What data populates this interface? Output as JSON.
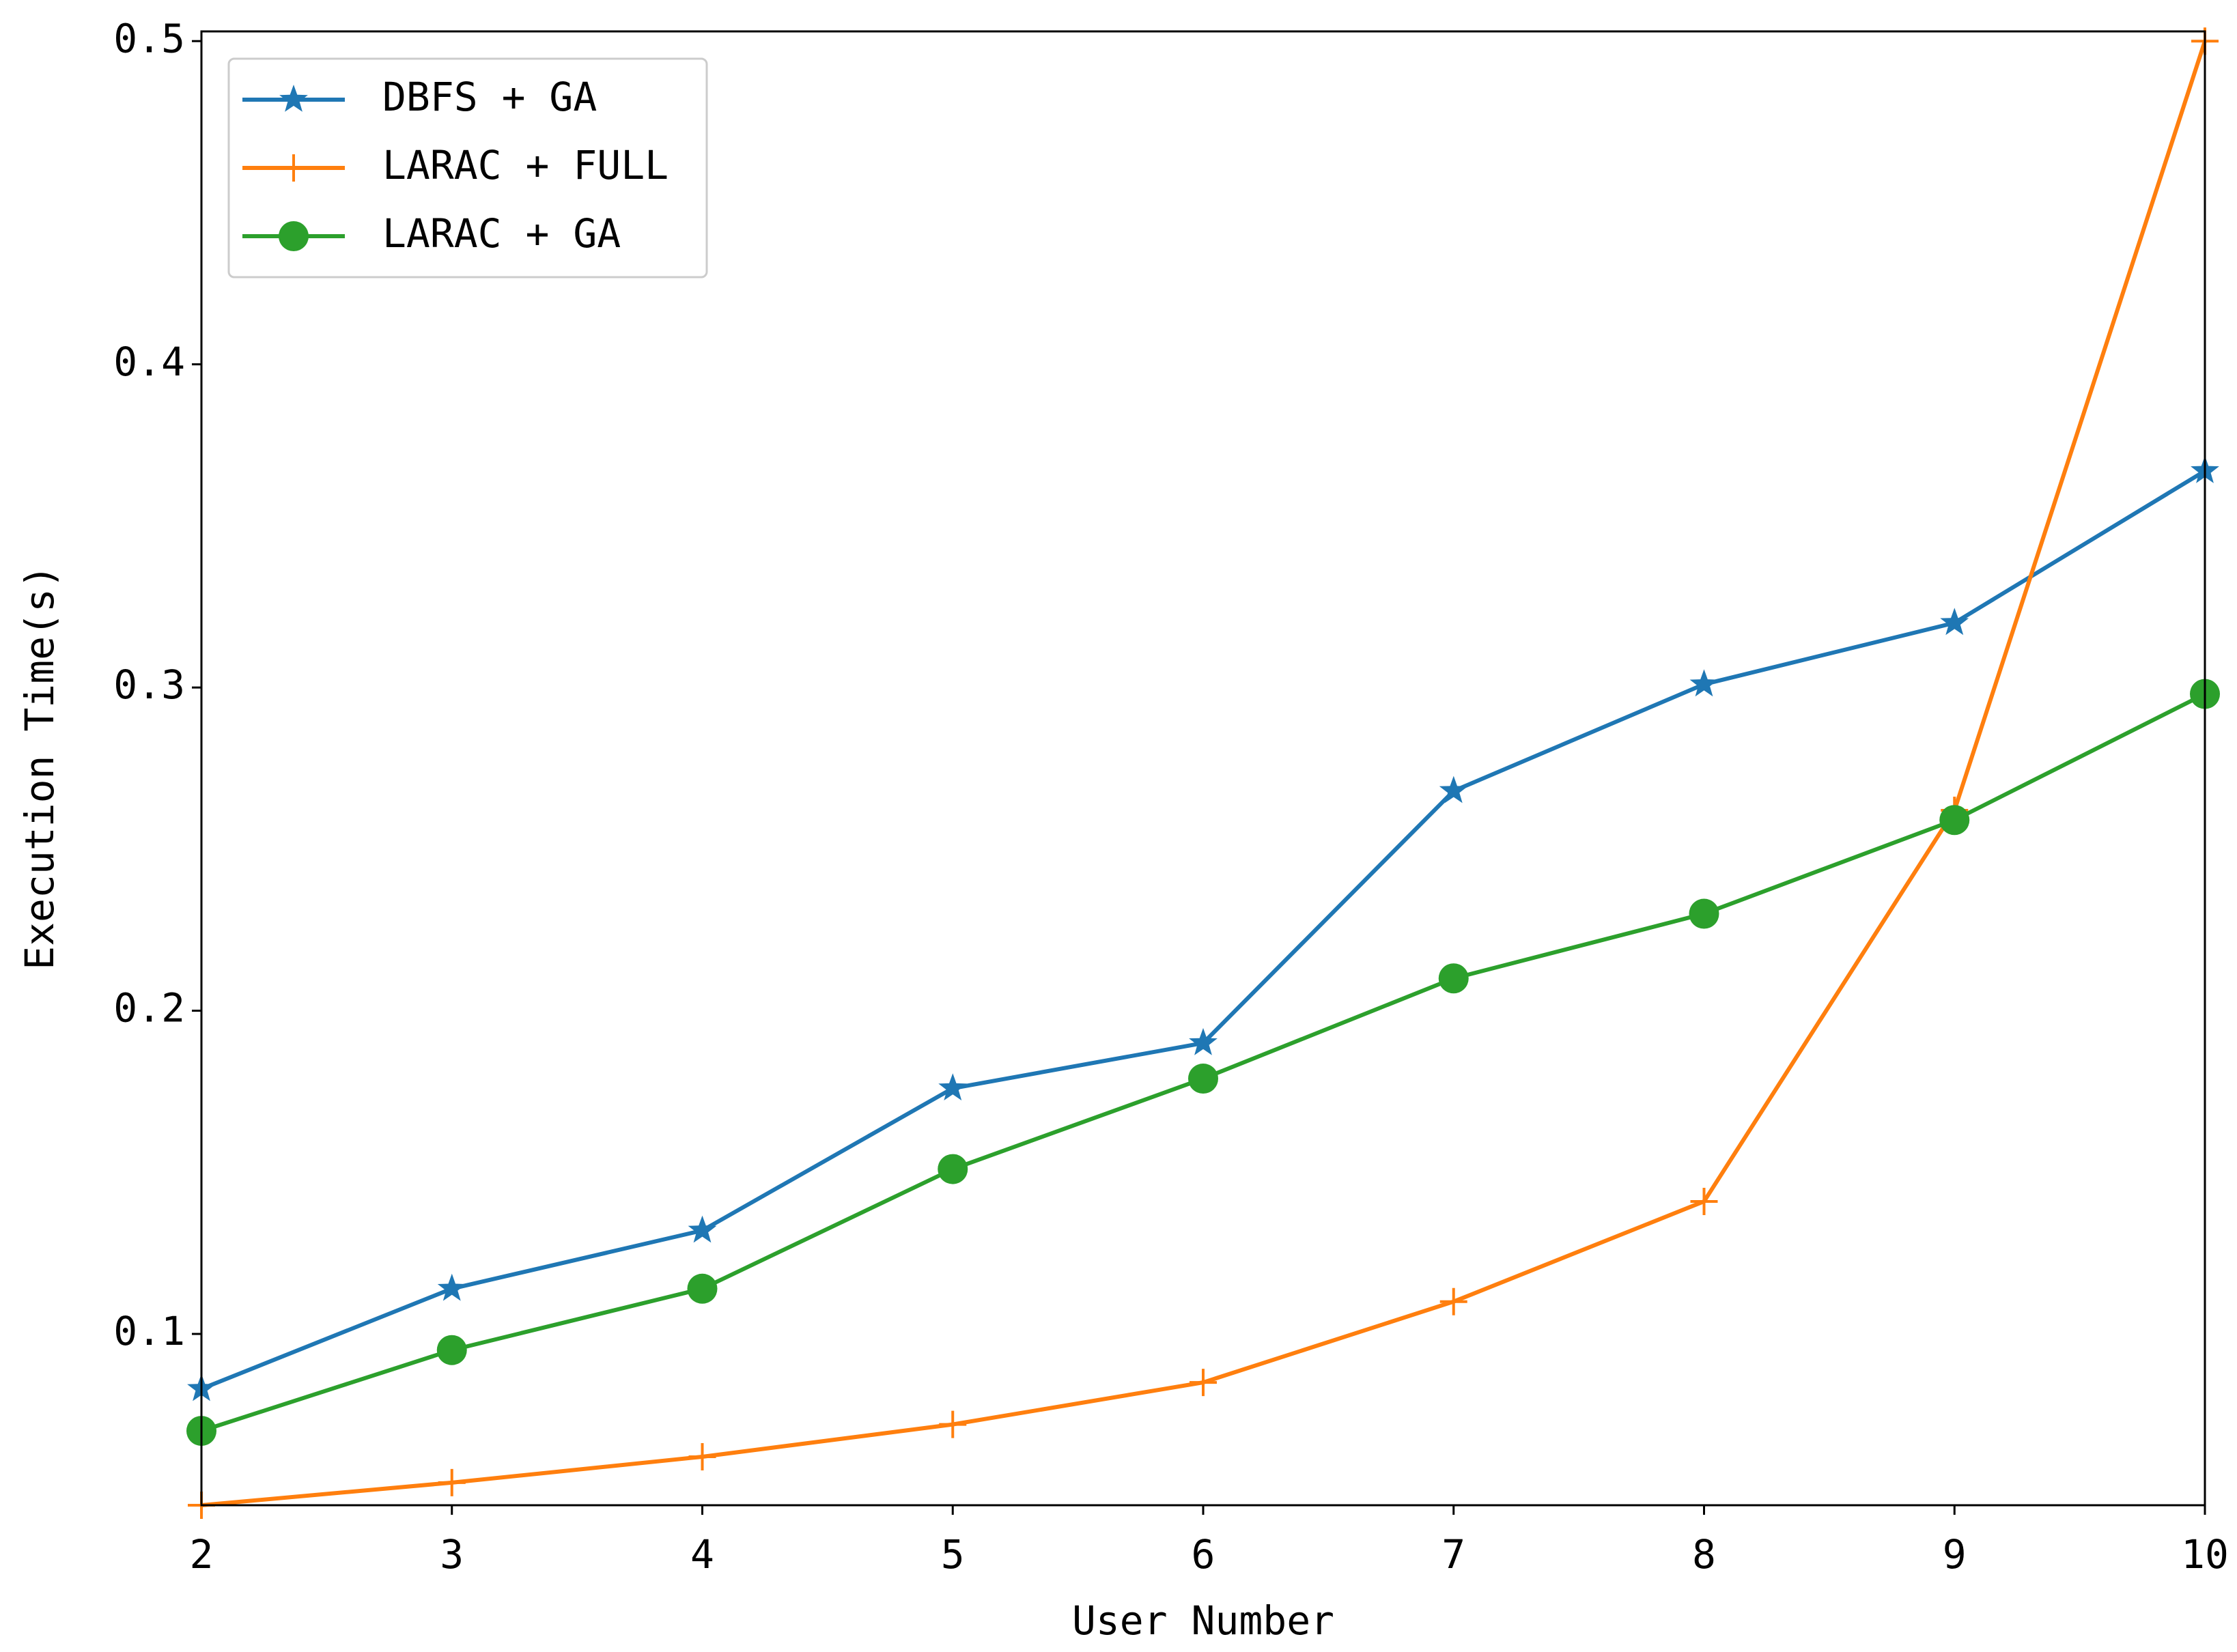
{
  "chart_data": {
    "type": "line",
    "x_label": "User Number",
    "y_label": "Execution Time(s)",
    "x": [
      2,
      3,
      4,
      5,
      6,
      7,
      8,
      9,
      10
    ],
    "xlim": [
      2,
      10
    ],
    "xticks": [
      2,
      3,
      4,
      5,
      6,
      7,
      8,
      9,
      10
    ],
    "ylim": [
      0.047,
      0.503
    ],
    "yticks": [
      0.1,
      0.2,
      0.3,
      0.4,
      0.5
    ],
    "legend": "upper-left",
    "grid": false,
    "series": [
      {
        "name": "DBFS + GA",
        "color": "#1f77b4",
        "marker": "star",
        "values": [
          0.083,
          0.114,
          0.132,
          0.176,
          0.19,
          0.268,
          0.301,
          0.32,
          0.367
        ]
      },
      {
        "name": "LARAC + FULL",
        "color": "#ff7f0e",
        "marker": "plus",
        "values": [
          0.047,
          0.054,
          0.062,
          0.072,
          0.085,
          0.11,
          0.141,
          0.262,
          0.5
        ]
      },
      {
        "name": "LARAC + GA",
        "color": "#2ca02c",
        "marker": "circle",
        "values": [
          0.07,
          0.095,
          0.114,
          0.151,
          0.179,
          0.21,
          0.23,
          0.259,
          0.298
        ]
      }
    ]
  }
}
